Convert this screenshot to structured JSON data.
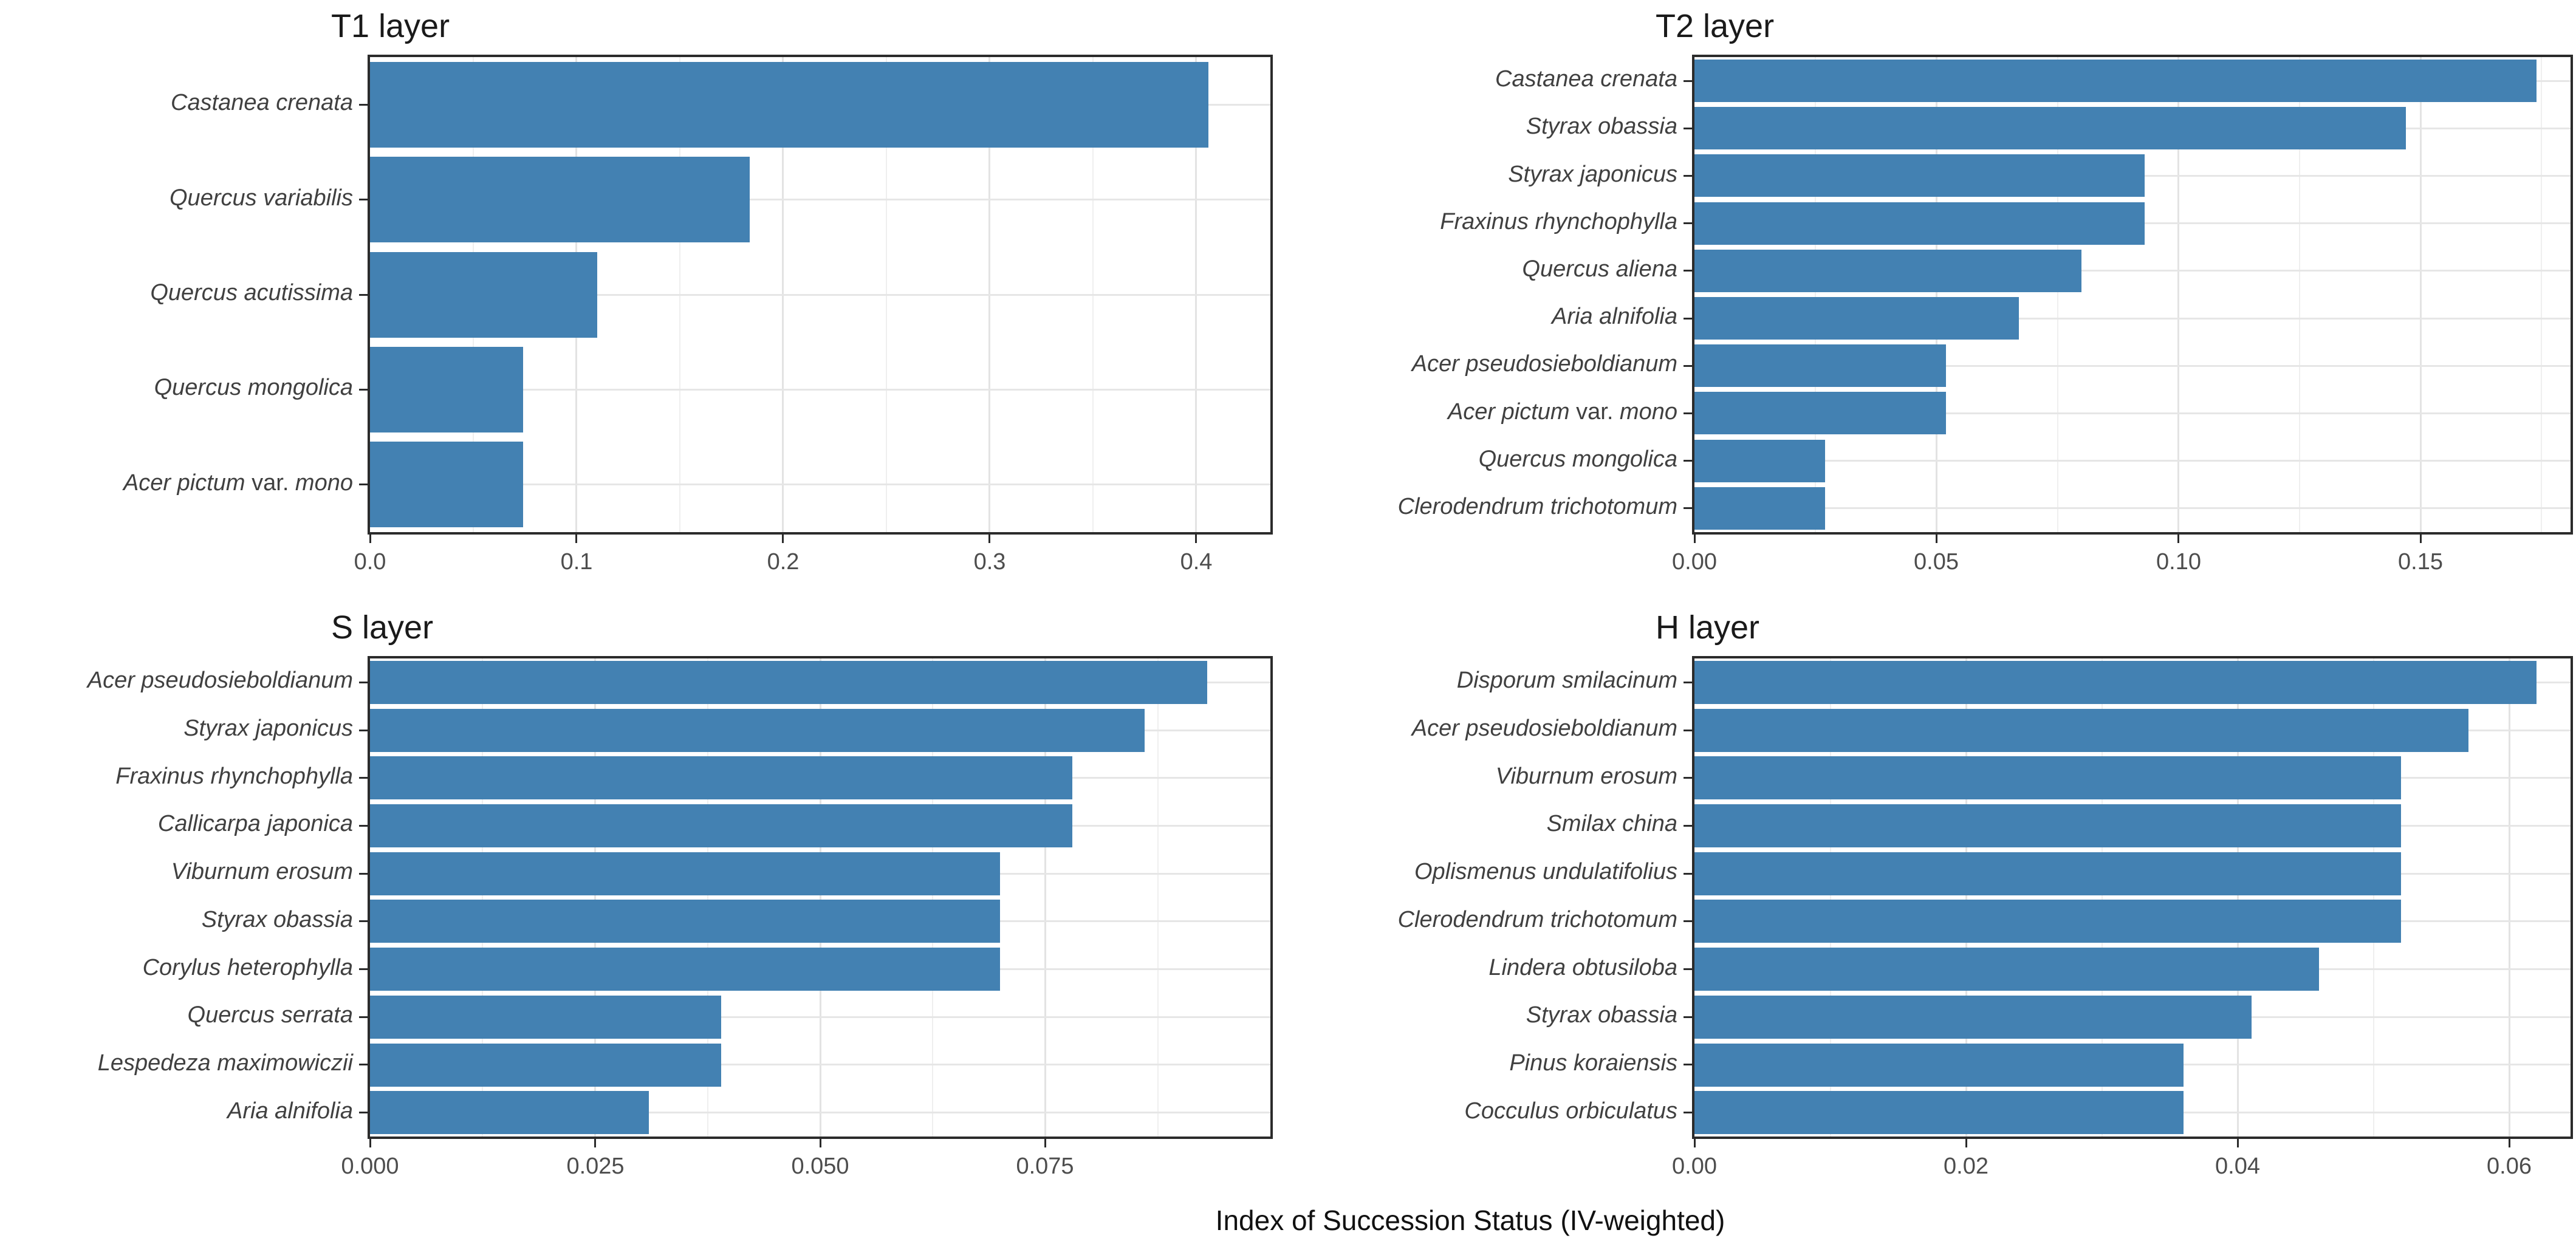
{
  "figure": {
    "caption": "Index of Succession Status (IV-weighted)",
    "bar_color": "#4381B2",
    "text_color": "#404040",
    "border_color": "#2b2b2b"
  },
  "chart_data": [
    {
      "type": "bar",
      "orientation": "horizontal",
      "title": "T1 layer",
      "categories": [
        "Castanea crenata",
        "Quercus variabilis",
        "Quercus acutissima",
        "Quercus mongolica",
        "Acer pictum var. mono"
      ],
      "values": [
        0.406,
        0.184,
        0.11,
        0.074,
        0.074
      ],
      "xlabel": "Index of Succession Status (IV-weighted)",
      "ylabel": "",
      "xlim": [
        0,
        0.436
      ],
      "xticks": [
        0.0,
        0.1,
        0.2,
        0.3,
        0.4
      ],
      "xtick_labels": [
        "0.0",
        "0.1",
        "0.2",
        "0.3",
        "0.4"
      ],
      "minor_step": 0.05,
      "grid": true,
      "legend": false
    },
    {
      "type": "bar",
      "orientation": "horizontal",
      "title": "T2 layer",
      "categories": [
        "Castanea crenata",
        "Styrax obassia",
        "Styrax japonicus",
        "Fraxinus rhynchophylla",
        "Quercus aliena",
        "Aria alnifolia",
        "Acer pseudosieboldianum",
        "Acer pictum var. mono",
        "Quercus mongolica",
        "Clerodendrum trichotomum"
      ],
      "values": [
        0.174,
        0.147,
        0.093,
        0.093,
        0.08,
        0.067,
        0.052,
        0.052,
        0.027,
        0.027
      ],
      "xlabel": "Index of Succession Status (IV-weighted)",
      "ylabel": "",
      "xlim": [
        0,
        0.181
      ],
      "xticks": [
        0.0,
        0.05,
        0.1,
        0.15
      ],
      "xtick_labels": [
        "0.00",
        "0.05",
        "0.10",
        "0.15"
      ],
      "minor_step": 0.025,
      "grid": true,
      "legend": false
    },
    {
      "type": "bar",
      "orientation": "horizontal",
      "title": "S layer",
      "categories": [
        "Acer pseudosieboldianum",
        "Styrax japonicus",
        "Fraxinus rhynchophylla",
        "Callicarpa japonica",
        "Viburnum erosum",
        "Styrax obassia",
        "Corylus heterophylla",
        "Quercus serrata",
        "Lespedeza maximowiczii",
        "Aria alnifolia"
      ],
      "values": [
        0.093,
        0.086,
        0.078,
        0.078,
        0.07,
        0.07,
        0.07,
        0.039,
        0.039,
        0.031
      ],
      "xlabel": "Index of Succession Status (IV-weighted)",
      "ylabel": "",
      "xlim": [
        0,
        0.1
      ],
      "xticks": [
        0.0,
        0.025,
        0.05,
        0.075
      ],
      "xtick_labels": [
        "0.000",
        "0.025",
        "0.050",
        "0.075"
      ],
      "minor_step": 0.0125,
      "grid": true,
      "legend": false
    },
    {
      "type": "bar",
      "orientation": "horizontal",
      "title": "H layer",
      "categories": [
        "Disporum smilacinum",
        "Acer pseudosieboldianum",
        "Viburnum erosum",
        "Smilax china",
        "Oplismenus undulatifolius",
        "Clerodendrum trichotomum",
        "Lindera obtusiloba",
        "Styrax obassia",
        "Pinus koraiensis",
        "Cocculus orbiculatus"
      ],
      "values": [
        0.062,
        0.057,
        0.052,
        0.052,
        0.052,
        0.052,
        0.046,
        0.041,
        0.036,
        0.036
      ],
      "xlabel": "Index of Succession Status (IV-weighted)",
      "ylabel": "",
      "xlim": [
        0,
        0.0645
      ],
      "xticks": [
        0.0,
        0.02,
        0.04,
        0.06
      ],
      "xtick_labels": [
        "0.00",
        "0.02",
        "0.04",
        "0.06"
      ],
      "minor_step": 0.01,
      "grid": true,
      "legend": false
    }
  ]
}
